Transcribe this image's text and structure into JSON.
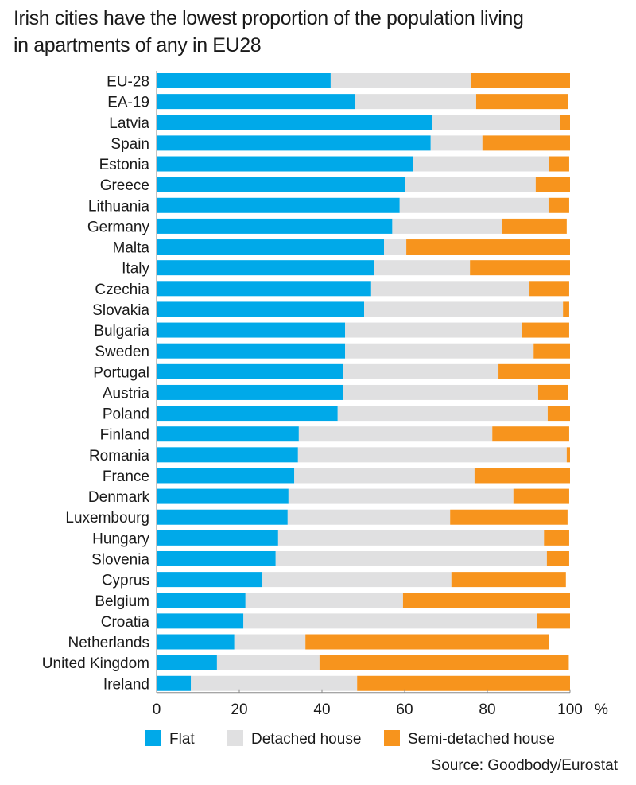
{
  "chart_data": {
    "type": "bar",
    "orientation": "horizontal",
    "stacked": true,
    "title": "Irish cities have the lowest proportion of the population living in apartments of any in EU28",
    "title_lines": [
      "Irish cities have the lowest proportion of the population living",
      "in apartments of any in EU28"
    ],
    "xlabel": "",
    "ylabel": "",
    "unit_label": "%",
    "xlim": [
      0,
      100
    ],
    "xticks": [
      0,
      20,
      40,
      60,
      80,
      100
    ],
    "grid": false,
    "legend_position": "bottom",
    "source": "Source: Goodbody/Eurostat",
    "categories": [
      "EU-28",
      "EA-19",
      "Latvia",
      "Spain",
      "Estonia",
      "Greece",
      "Lithuania",
      "Germany",
      "Malta",
      "Italy",
      "Czechia",
      "Slovakia",
      "Bulgaria",
      "Sweden",
      "Portugal",
      "Austria",
      "Poland",
      "Finland",
      "Romania",
      "France",
      "Denmark",
      "Luxembourg",
      "Hungary",
      "Slovenia",
      "Cyprus",
      "Belgium",
      "Croatia",
      "Netherlands",
      "United Kingdom",
      "Ireland"
    ],
    "series": [
      {
        "name": "Flat",
        "color": "#00a9e9",
        "values": [
          42.1,
          48.1,
          66.7,
          66.3,
          62.1,
          60.2,
          58.8,
          57.0,
          55.0,
          52.7,
          51.9,
          50.2,
          45.6,
          45.6,
          45.2,
          45.0,
          43.8,
          34.4,
          34.2,
          33.3,
          31.9,
          31.7,
          29.4,
          28.8,
          25.6,
          21.5,
          21.0,
          18.8,
          14.6,
          8.3
        ]
      },
      {
        "name": "Detached house",
        "color": "#e0e0e1",
        "values": [
          33.9,
          29.2,
          30.8,
          12.5,
          32.9,
          31.5,
          36.0,
          26.5,
          5.4,
          23.1,
          38.3,
          48.1,
          42.7,
          45.6,
          37.5,
          47.3,
          50.8,
          46.8,
          65.0,
          43.6,
          54.4,
          39.3,
          64.3,
          65.6,
          45.7,
          38.1,
          71.1,
          17.2,
          24.8,
          40.2
        ]
      },
      {
        "name": "Semi-detached house",
        "color": "#f7941d",
        "values": [
          24.0,
          22.3,
          2.5,
          21.2,
          4.8,
          8.3,
          5.0,
          15.7,
          39.6,
          24.2,
          9.6,
          1.5,
          11.5,
          8.8,
          17.3,
          7.3,
          5.4,
          18.6,
          0.8,
          23.1,
          13.5,
          28.4,
          6.1,
          5.4,
          27.7,
          40.4,
          7.9,
          59.0,
          60.3,
          51.5
        ]
      }
    ]
  }
}
